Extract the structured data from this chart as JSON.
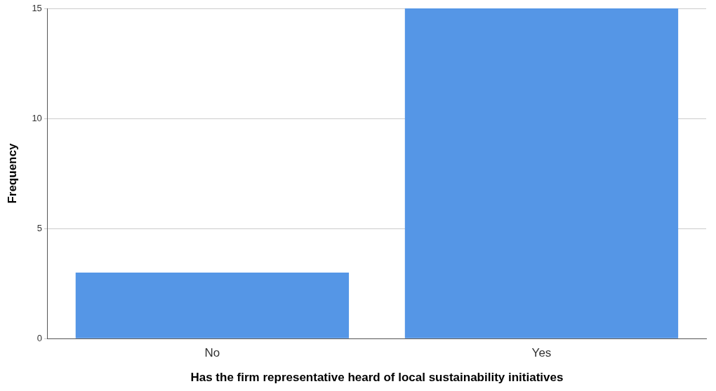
{
  "chart_data": {
    "type": "bar",
    "xlabel": "Has the firm representative heard of local sustainability initiatives",
    "ylabel": "Frequency",
    "categories": [
      "No",
      "Yes"
    ],
    "values": [
      3,
      15
    ],
    "color": "#5596e6",
    "ylim": [
      0,
      15
    ],
    "yticks": [
      0,
      5,
      10,
      15
    ],
    "grid": "y",
    "legend": false
  }
}
